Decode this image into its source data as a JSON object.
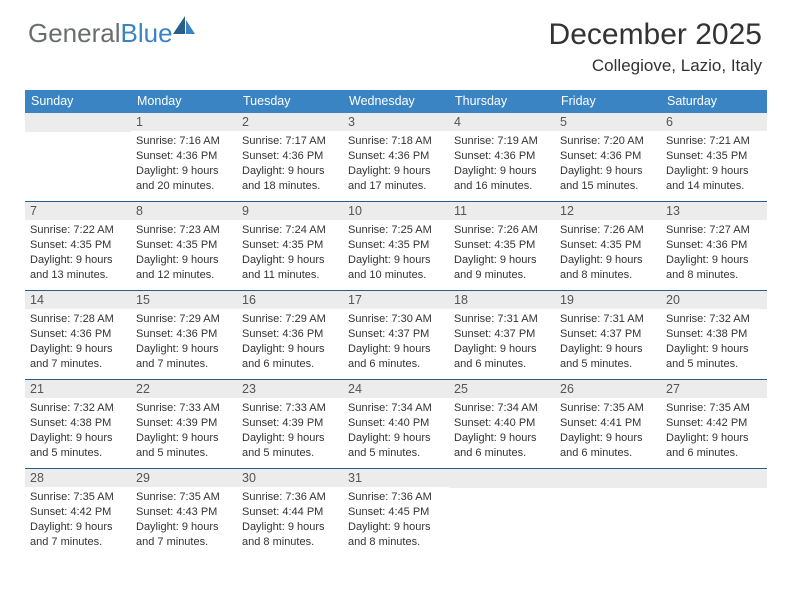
{
  "brand": {
    "part1": "General",
    "part2": "Blue"
  },
  "title": "December 2025",
  "location": "Collegiove, Lazio, Italy",
  "colors": {
    "header_bg": "#3a84c4",
    "daynum_bg": "#ececec",
    "row_border": "#2a5d8a",
    "text": "#333333"
  },
  "days_of_week": [
    "Sunday",
    "Monday",
    "Tuesday",
    "Wednesday",
    "Thursday",
    "Friday",
    "Saturday"
  ],
  "weeks": [
    [
      {
        "n": "",
        "sunrise": "",
        "sunset": "",
        "daylight": ""
      },
      {
        "n": "1",
        "sunrise": "7:16 AM",
        "sunset": "4:36 PM",
        "daylight": "9 hours and 20 minutes."
      },
      {
        "n": "2",
        "sunrise": "7:17 AM",
        "sunset": "4:36 PM",
        "daylight": "9 hours and 18 minutes."
      },
      {
        "n": "3",
        "sunrise": "7:18 AM",
        "sunset": "4:36 PM",
        "daylight": "9 hours and 17 minutes."
      },
      {
        "n": "4",
        "sunrise": "7:19 AM",
        "sunset": "4:36 PM",
        "daylight": "9 hours and 16 minutes."
      },
      {
        "n": "5",
        "sunrise": "7:20 AM",
        "sunset": "4:36 PM",
        "daylight": "9 hours and 15 minutes."
      },
      {
        "n": "6",
        "sunrise": "7:21 AM",
        "sunset": "4:35 PM",
        "daylight": "9 hours and 14 minutes."
      }
    ],
    [
      {
        "n": "7",
        "sunrise": "7:22 AM",
        "sunset": "4:35 PM",
        "daylight": "9 hours and 13 minutes."
      },
      {
        "n": "8",
        "sunrise": "7:23 AM",
        "sunset": "4:35 PM",
        "daylight": "9 hours and 12 minutes."
      },
      {
        "n": "9",
        "sunrise": "7:24 AM",
        "sunset": "4:35 PM",
        "daylight": "9 hours and 11 minutes."
      },
      {
        "n": "10",
        "sunrise": "7:25 AM",
        "sunset": "4:35 PM",
        "daylight": "9 hours and 10 minutes."
      },
      {
        "n": "11",
        "sunrise": "7:26 AM",
        "sunset": "4:35 PM",
        "daylight": "9 hours and 9 minutes."
      },
      {
        "n": "12",
        "sunrise": "7:26 AM",
        "sunset": "4:35 PM",
        "daylight": "9 hours and 8 minutes."
      },
      {
        "n": "13",
        "sunrise": "7:27 AM",
        "sunset": "4:36 PM",
        "daylight": "9 hours and 8 minutes."
      }
    ],
    [
      {
        "n": "14",
        "sunrise": "7:28 AM",
        "sunset": "4:36 PM",
        "daylight": "9 hours and 7 minutes."
      },
      {
        "n": "15",
        "sunrise": "7:29 AM",
        "sunset": "4:36 PM",
        "daylight": "9 hours and 7 minutes."
      },
      {
        "n": "16",
        "sunrise": "7:29 AM",
        "sunset": "4:36 PM",
        "daylight": "9 hours and 6 minutes."
      },
      {
        "n": "17",
        "sunrise": "7:30 AM",
        "sunset": "4:37 PM",
        "daylight": "9 hours and 6 minutes."
      },
      {
        "n": "18",
        "sunrise": "7:31 AM",
        "sunset": "4:37 PM",
        "daylight": "9 hours and 6 minutes."
      },
      {
        "n": "19",
        "sunrise": "7:31 AM",
        "sunset": "4:37 PM",
        "daylight": "9 hours and 5 minutes."
      },
      {
        "n": "20",
        "sunrise": "7:32 AM",
        "sunset": "4:38 PM",
        "daylight": "9 hours and 5 minutes."
      }
    ],
    [
      {
        "n": "21",
        "sunrise": "7:32 AM",
        "sunset": "4:38 PM",
        "daylight": "9 hours and 5 minutes."
      },
      {
        "n": "22",
        "sunrise": "7:33 AM",
        "sunset": "4:39 PM",
        "daylight": "9 hours and 5 minutes."
      },
      {
        "n": "23",
        "sunrise": "7:33 AM",
        "sunset": "4:39 PM",
        "daylight": "9 hours and 5 minutes."
      },
      {
        "n": "24",
        "sunrise": "7:34 AM",
        "sunset": "4:40 PM",
        "daylight": "9 hours and 5 minutes."
      },
      {
        "n": "25",
        "sunrise": "7:34 AM",
        "sunset": "4:40 PM",
        "daylight": "9 hours and 6 minutes."
      },
      {
        "n": "26",
        "sunrise": "7:35 AM",
        "sunset": "4:41 PM",
        "daylight": "9 hours and 6 minutes."
      },
      {
        "n": "27",
        "sunrise": "7:35 AM",
        "sunset": "4:42 PM",
        "daylight": "9 hours and 6 minutes."
      }
    ],
    [
      {
        "n": "28",
        "sunrise": "7:35 AM",
        "sunset": "4:42 PM",
        "daylight": "9 hours and 7 minutes."
      },
      {
        "n": "29",
        "sunrise": "7:35 AM",
        "sunset": "4:43 PM",
        "daylight": "9 hours and 7 minutes."
      },
      {
        "n": "30",
        "sunrise": "7:36 AM",
        "sunset": "4:44 PM",
        "daylight": "9 hours and 8 minutes."
      },
      {
        "n": "31",
        "sunrise": "7:36 AM",
        "sunset": "4:45 PM",
        "daylight": "9 hours and 8 minutes."
      },
      {
        "n": "",
        "sunrise": "",
        "sunset": "",
        "daylight": ""
      },
      {
        "n": "",
        "sunrise": "",
        "sunset": "",
        "daylight": ""
      },
      {
        "n": "",
        "sunrise": "",
        "sunset": "",
        "daylight": ""
      }
    ]
  ]
}
